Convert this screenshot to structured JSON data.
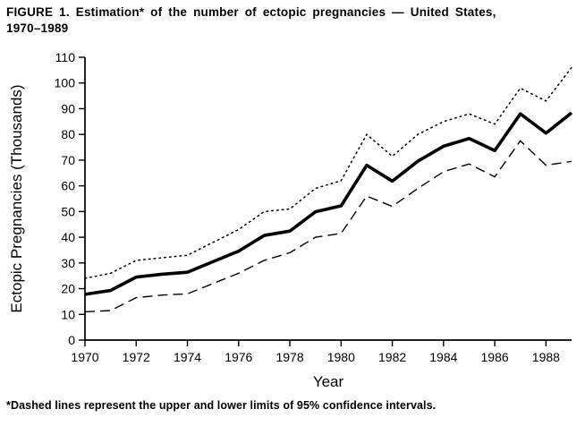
{
  "title": {
    "line1": "FIGURE 1. Estimation* of the number of ectopic pregnancies — United States,",
    "line2": "1970–1989"
  },
  "footnote": "*Dashed lines represent the upper and lower limits of 95% confidence intervals.",
  "chart_data": {
    "type": "line",
    "title": "Estimation of the number of ectopic pregnancies — United States, 1970–1989",
    "xlabel": "Year",
    "ylabel": "Ectopic Pregnancies (Thousands)",
    "ylim": [
      0,
      110
    ],
    "ytick_step": 10,
    "x": [
      1970,
      1971,
      1972,
      1973,
      1974,
      1975,
      1976,
      1977,
      1978,
      1979,
      1980,
      1981,
      1982,
      1983,
      1984,
      1985,
      1986,
      1987,
      1988,
      1989
    ],
    "xticks": [
      1970,
      1972,
      1974,
      1976,
      1978,
      1980,
      1982,
      1984,
      1986,
      1988
    ],
    "grid": false,
    "legend": "none",
    "line_color": "#000000",
    "background_color": "#ffffff",
    "series": [
      {
        "name": "estimate",
        "style": "solid-thick",
        "values": [
          17.8,
          19.3,
          24.5,
          25.6,
          26.4,
          30.5,
          34.6,
          40.7,
          42.4,
          49.9,
          52.2,
          68.0,
          61.8,
          69.6,
          75.4,
          78.4,
          73.7,
          88.0,
          80.5,
          88.4
        ]
      },
      {
        "name": "upper-95ci",
        "style": "dotted",
        "values": [
          24.0,
          26.0,
          31.0,
          32.0,
          33.0,
          38.0,
          43.0,
          50.0,
          51.0,
          59.0,
          62.0,
          80.0,
          71.5,
          80.0,
          85.0,
          88.0,
          84.0,
          98.0,
          93.0,
          106.0
        ]
      },
      {
        "name": "lower-95ci",
        "style": "dashed",
        "values": [
          11.0,
          11.5,
          16.5,
          17.5,
          18.0,
          22.0,
          26.0,
          31.0,
          34.0,
          40.0,
          41.5,
          56.0,
          52.0,
          59.0,
          65.5,
          68.5,
          63.5,
          77.5,
          68.0,
          69.5
        ]
      }
    ]
  }
}
